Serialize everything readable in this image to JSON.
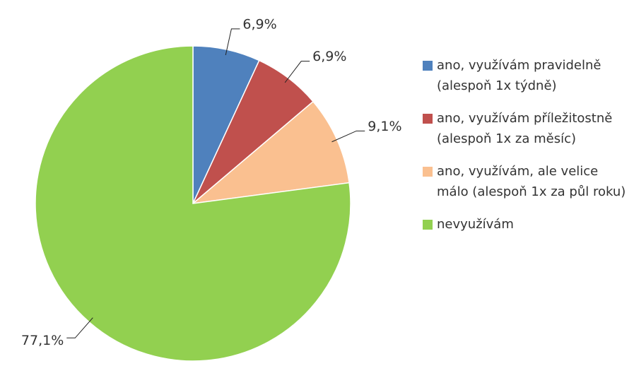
{
  "chart_data": {
    "type": "pie",
    "categories": [
      "ano, využívám pravidelně (alespoň 1x týdně)",
      "ano, využívám příležitostně (alespoň 1x za měsíc)",
      "ano, využívám, ale velice málo (alespoň 1x za půl roku)",
      "nevyužívám"
    ],
    "values": [
      6.9,
      6.9,
      9.1,
      77.1
    ],
    "value_labels": [
      "6,9%",
      "6,9%",
      "9,1%",
      "77,1%"
    ],
    "colors": [
      "#4f81bd",
      "#c0504d",
      "#fac090",
      "#92d050"
    ],
    "legend": "right"
  }
}
